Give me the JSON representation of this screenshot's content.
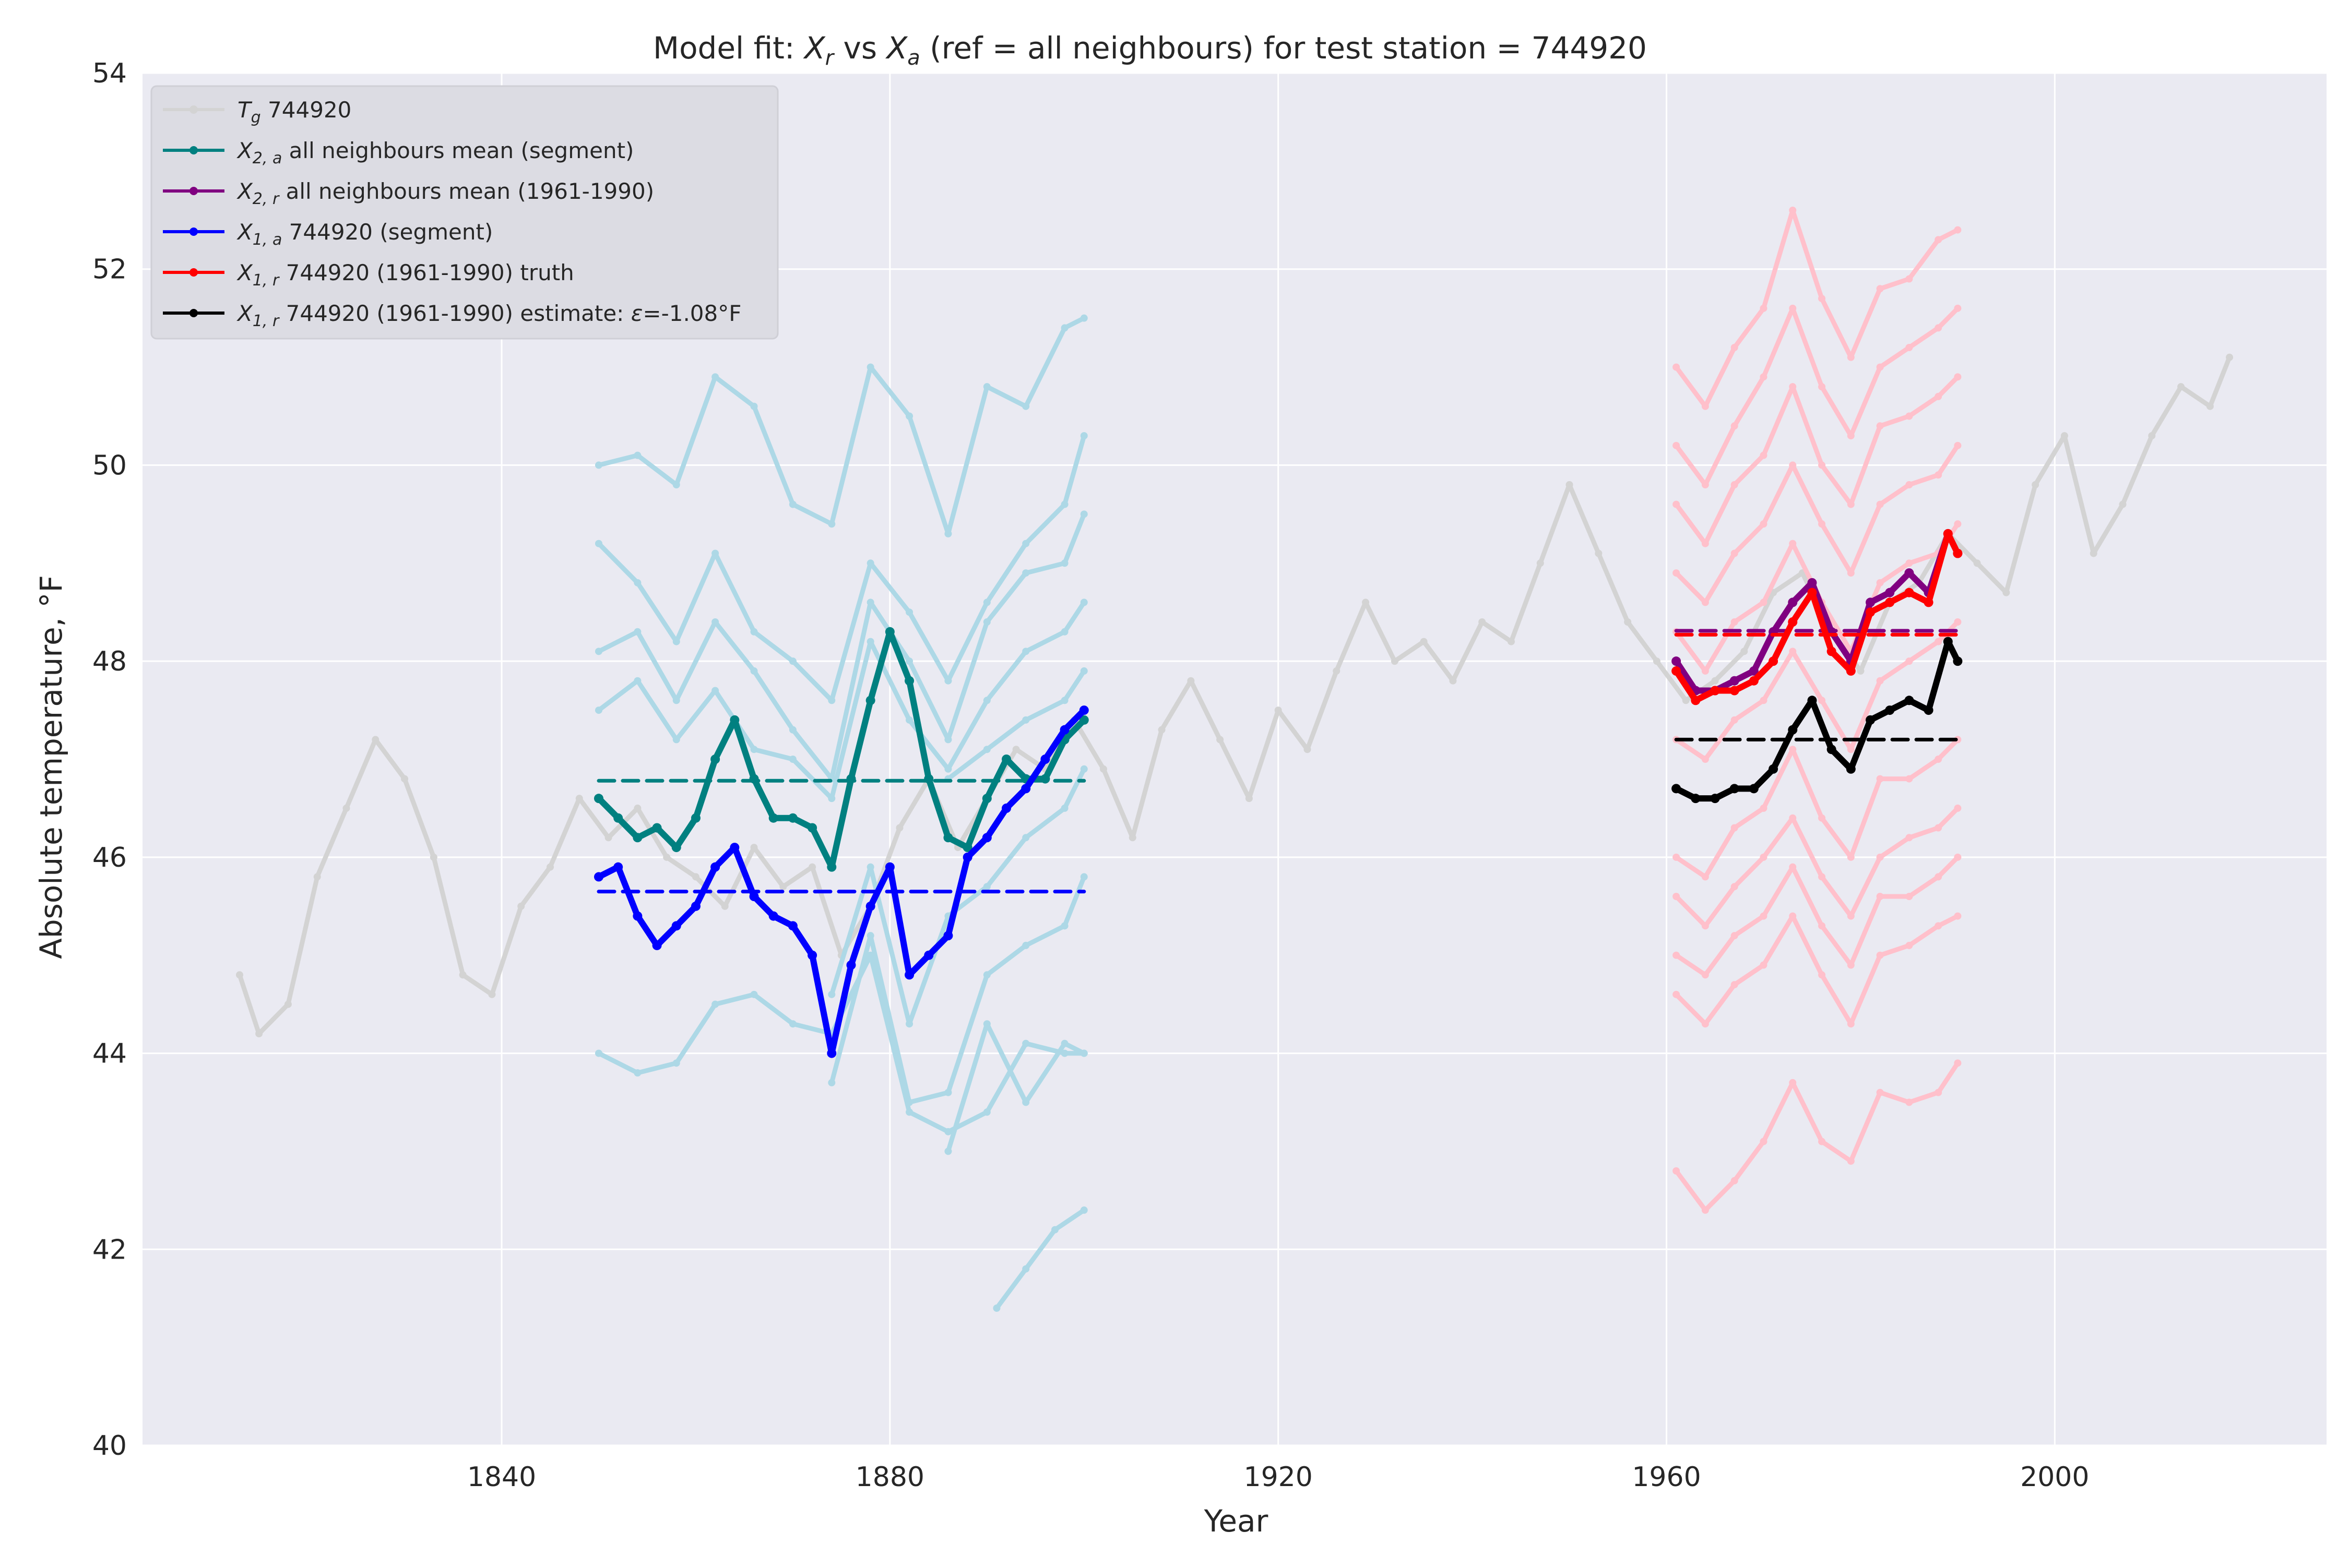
{
  "chart_data": {
    "type": "line",
    "title": {
      "prefix": "Model fit: ",
      "xr_main": "X",
      "xr_sub": "r",
      "vs": " vs ",
      "xa_main": "X",
      "xa_sub": "a",
      "suffix": " (ref = all neighbours) for test station = 744920"
    },
    "xlabel": "Year",
    "ylabel": "Absolute temperature, °F",
    "xlim": [
      1803,
      2028
    ],
    "ylim": [
      40,
      54
    ],
    "xticks": [
      1840,
      1880,
      1920,
      1960,
      2000
    ],
    "yticks": [
      40,
      42,
      44,
      46,
      48,
      50,
      52,
      54
    ],
    "grid": true,
    "legend_position": "top-left",
    "colors": {
      "background": "#eaeaf2",
      "grid": "#ffffff",
      "tg": "#d3d3d3",
      "neigh_seg": "#add8e6",
      "neigh_ref": "#ffc0cb",
      "x2a": "#008080",
      "x2r": "#800080",
      "x1a": "#0000ff",
      "x1r_truth": "#ff0000",
      "x1r_est": "#000000"
    },
    "legend": [
      {
        "key": "tg",
        "main": "T",
        "sub": "g",
        "text": " 744920"
      },
      {
        "key": "x2a",
        "main": "X",
        "sub": "2, a",
        "text": " all neighbours mean (segment)"
      },
      {
        "key": "x2r",
        "main": "X",
        "sub": "2, r",
        "text": " all neighbours mean (1961-1990)"
      },
      {
        "key": "x1a",
        "main": "X",
        "sub": "1, a",
        "text": " 744920 (segment)"
      },
      {
        "key": "x1r_truth",
        "main": "X",
        "sub": "1, r",
        "text": " 744920 (1961-1990) truth"
      },
      {
        "key": "x1r_est",
        "main": "X",
        "sub": "1, r",
        "text": " 744920 (1961-1990) estimate: ",
        "epsilon": "ε",
        "value": "=-1.08°F"
      }
    ],
    "series": [
      {
        "key": "tg",
        "name": "T_g 744920",
        "x": [
          1813,
          1815,
          1818,
          1821,
          1824,
          1827,
          1830,
          1833,
          1836,
          1839,
          1842,
          1845,
          1848,
          1851,
          1854,
          1857,
          1860,
          1863,
          1866,
          1869,
          1872,
          1875,
          1878,
          1881,
          1884,
          1887,
          1890,
          1893,
          1896,
          1899,
          1902,
          1905,
          1908,
          1911,
          1914,
          1917,
          1920,
          1923,
          1926,
          1929,
          1932,
          1935,
          1938,
          1941,
          1944,
          1947,
          1950,
          1953,
          1956,
          1959,
          1962,
          1965,
          1968,
          1971,
          1974,
          1977,
          1980,
          1983,
          1986,
          1989,
          1992,
          1995,
          1998,
          2001,
          2004,
          2007,
          2010,
          2013,
          2016,
          2018
        ],
        "y": [
          44.8,
          44.2,
          44.5,
          45.8,
          46.5,
          47.2,
          46.8,
          46.0,
          44.8,
          44.6,
          45.5,
          45.9,
          46.6,
          46.2,
          46.5,
          46.0,
          45.8,
          45.5,
          46.1,
          45.7,
          45.9,
          45.0,
          45.5,
          46.3,
          46.8,
          46.1,
          46.6,
          47.1,
          46.9,
          47.4,
          46.9,
          46.2,
          47.3,
          47.8,
          47.2,
          46.6,
          47.5,
          47.1,
          47.9,
          48.6,
          48.0,
          48.2,
          47.8,
          48.4,
          48.2,
          49.0,
          49.8,
          49.1,
          48.4,
          48.0,
          47.6,
          47.8,
          48.1,
          48.7,
          48.9,
          48.3,
          47.9,
          48.6,
          48.8,
          49.3,
          49.0,
          48.7,
          49.8,
          50.3,
          49.1,
          49.6,
          50.3,
          50.8,
          50.6,
          51.1
        ]
      },
      {
        "key": "neigh_seg",
        "name": "neighbour",
        "x": [
          1850,
          1854,
          1858,
          1862,
          1866,
          1870,
          1874,
          1878,
          1882,
          1886,
          1890,
          1894,
          1898,
          1900
        ],
        "y": [
          50.0,
          50.1,
          49.8,
          50.9,
          50.6,
          49.6,
          49.4,
          51.0,
          50.5,
          49.3,
          50.8,
          50.6,
          51.4,
          51.5
        ]
      },
      {
        "key": "neigh_seg",
        "name": "neighbour",
        "x": [
          1850,
          1854,
          1858,
          1862,
          1866,
          1870,
          1874,
          1878,
          1882,
          1886,
          1890,
          1894,
          1898,
          1900
        ],
        "y": [
          49.2,
          48.8,
          48.2,
          49.1,
          48.3,
          48.0,
          47.6,
          49.0,
          48.5,
          47.8,
          48.6,
          49.2,
          49.6,
          50.3
        ]
      },
      {
        "key": "neigh_seg",
        "name": "neighbour",
        "x": [
          1850,
          1854,
          1858,
          1862,
          1866,
          1870,
          1874,
          1878,
          1882,
          1886,
          1890,
          1894,
          1898,
          1900
        ],
        "y": [
          48.1,
          48.3,
          47.6,
          48.4,
          47.9,
          47.3,
          46.8,
          48.6,
          48.0,
          47.2,
          48.4,
          48.9,
          49.0,
          49.5
        ]
      },
      {
        "key": "neigh_seg",
        "name": "neighbour",
        "x": [
          1850,
          1854,
          1858,
          1862,
          1866,
          1870,
          1874,
          1878,
          1882,
          1886,
          1890,
          1894,
          1898,
          1900
        ],
        "y": [
          47.5,
          47.8,
          47.2,
          47.7,
          47.1,
          47.0,
          46.6,
          48.2,
          47.4,
          46.9,
          47.6,
          48.1,
          48.3,
          48.6
        ]
      },
      {
        "key": "neigh_seg",
        "name": "neighbour",
        "x": [
          1886,
          1890,
          1894,
          1898,
          1900
        ],
        "y": [
          46.8,
          47.1,
          47.4,
          47.6,
          47.9
        ]
      },
      {
        "key": "neigh_seg",
        "name": "neighbour",
        "x": [
          1874,
          1878,
          1882,
          1886,
          1890,
          1894,
          1898,
          1900
        ],
        "y": [
          44.6,
          45.9,
          44.3,
          45.4,
          45.7,
          46.2,
          46.5,
          46.9
        ]
      },
      {
        "key": "neigh_seg",
        "name": "neighbour",
        "x": [
          1874,
          1878,
          1882,
          1886,
          1890,
          1894,
          1898,
          1900
        ],
        "y": [
          43.7,
          45.2,
          43.5,
          43.6,
          44.8,
          45.1,
          45.3,
          45.8
        ]
      },
      {
        "key": "neigh_seg",
        "name": "neighbour",
        "x": [
          1886,
          1890,
          1894,
          1898,
          1900
        ],
        "y": [
          43.0,
          44.3,
          43.5,
          44.1,
          44.0
        ]
      },
      {
        "key": "neigh_seg",
        "name": "neighbour",
        "x": [
          1850,
          1854,
          1858,
          1862,
          1866,
          1870,
          1874,
          1878,
          1882,
          1886,
          1890,
          1894,
          1898,
          1900
        ],
        "y": [
          44.0,
          43.8,
          43.9,
          44.5,
          44.6,
          44.3,
          44.2,
          45.0,
          43.4,
          43.2,
          43.4,
          44.1,
          44.0,
          44.0
        ]
      },
      {
        "key": "neigh_seg",
        "name": "neighbour",
        "x": [
          1891,
          1894,
          1897,
          1900
        ],
        "y": [
          41.4,
          41.8,
          42.2,
          42.4
        ]
      },
      {
        "key": "neigh_ref",
        "name": "neighbour",
        "x": [
          1961,
          1964,
          1967,
          1970,
          1973,
          1976,
          1979,
          1982,
          1985,
          1988,
          1990
        ],
        "y": [
          51.0,
          50.6,
          51.2,
          51.6,
          52.6,
          51.7,
          51.1,
          51.8,
          51.9,
          52.3,
          52.4
        ]
      },
      {
        "key": "neigh_ref",
        "name": "neighbour",
        "x": [
          1961,
          1964,
          1967,
          1970,
          1973,
          1976,
          1979,
          1982,
          1985,
          1988,
          1990
        ],
        "y": [
          50.2,
          49.8,
          50.4,
          50.9,
          51.6,
          50.8,
          50.3,
          51.0,
          51.2,
          51.4,
          51.6
        ]
      },
      {
        "key": "neigh_ref",
        "name": "neighbour",
        "x": [
          1961,
          1964,
          1967,
          1970,
          1973,
          1976,
          1979,
          1982,
          1985,
          1988,
          1990
        ],
        "y": [
          49.6,
          49.2,
          49.8,
          50.1,
          50.8,
          50.0,
          49.6,
          50.4,
          50.5,
          50.7,
          50.9
        ]
      },
      {
        "key": "neigh_ref",
        "name": "neighbour",
        "x": [
          1961,
          1964,
          1967,
          1970,
          1973,
          1976,
          1979,
          1982,
          1985,
          1988,
          1990
        ],
        "y": [
          48.9,
          48.6,
          49.1,
          49.4,
          50.0,
          49.4,
          48.9,
          49.6,
          49.8,
          49.9,
          50.2
        ]
      },
      {
        "key": "neigh_ref",
        "name": "neighbour",
        "x": [
          1961,
          1964,
          1967,
          1970,
          1973,
          1976,
          1979,
          1982,
          1985,
          1988,
          1990
        ],
        "y": [
          48.3,
          47.9,
          48.4,
          48.6,
          49.2,
          48.6,
          48.1,
          48.8,
          49.0,
          49.1,
          49.4
        ]
      },
      {
        "key": "neigh_ref",
        "name": "neighbour",
        "x": [
          1961,
          1964,
          1967,
          1970,
          1973,
          1976,
          1979,
          1982,
          1985,
          1988,
          1990
        ],
        "y": [
          47.2,
          47.0,
          47.4,
          47.6,
          48.1,
          47.6,
          47.1,
          47.8,
          48.0,
          48.2,
          48.4
        ]
      },
      {
        "key": "neigh_ref",
        "name": "neighbour",
        "x": [
          1961,
          1964,
          1967,
          1970,
          1973,
          1976,
          1979,
          1982,
          1985,
          1988,
          1990
        ],
        "y": [
          46.0,
          45.8,
          46.3,
          46.5,
          47.1,
          46.4,
          46.0,
          46.8,
          46.8,
          47.0,
          47.2
        ]
      },
      {
        "key": "neigh_ref",
        "name": "neighbour",
        "x": [
          1961,
          1964,
          1967,
          1970,
          1973,
          1976,
          1979,
          1982,
          1985,
          1988,
          1990
        ],
        "y": [
          45.6,
          45.3,
          45.7,
          46.0,
          46.4,
          45.8,
          45.4,
          46.0,
          46.2,
          46.3,
          46.5
        ]
      },
      {
        "key": "neigh_ref",
        "name": "neighbour",
        "x": [
          1961,
          1964,
          1967,
          1970,
          1973,
          1976,
          1979,
          1982,
          1985,
          1988,
          1990
        ],
        "y": [
          45.0,
          44.8,
          45.2,
          45.4,
          45.9,
          45.3,
          44.9,
          45.6,
          45.6,
          45.8,
          46.0
        ]
      },
      {
        "key": "neigh_ref",
        "name": "neighbour",
        "x": [
          1961,
          1964,
          1967,
          1970,
          1973,
          1976,
          1979,
          1982,
          1985,
          1988,
          1990
        ],
        "y": [
          44.6,
          44.3,
          44.7,
          44.9,
          45.4,
          44.8,
          44.3,
          45.0,
          45.1,
          45.3,
          45.4
        ]
      },
      {
        "key": "neigh_ref",
        "name": "neighbour",
        "x": [
          1961,
          1964,
          1967,
          1970,
          1973,
          1976,
          1979,
          1982,
          1985,
          1988,
          1990
        ],
        "y": [
          42.8,
          42.4,
          42.7,
          43.1,
          43.7,
          43.1,
          42.9,
          43.6,
          43.5,
          43.6,
          43.9
        ]
      },
      {
        "key": "x2a",
        "name": "X_2,a all neighbours mean (segment)",
        "x": [
          1850,
          1852,
          1854,
          1856,
          1858,
          1860,
          1862,
          1864,
          1866,
          1868,
          1870,
          1872,
          1874,
          1876,
          1878,
          1880,
          1882,
          1884,
          1886,
          1888,
          1890,
          1892,
          1894,
          1896,
          1898,
          1900
        ],
        "y": [
          46.6,
          46.4,
          46.2,
          46.3,
          46.1,
          46.4,
          47.0,
          47.4,
          46.8,
          46.4,
          46.4,
          46.3,
          45.9,
          46.8,
          47.6,
          48.3,
          47.8,
          46.8,
          46.2,
          46.1,
          46.6,
          47.0,
          46.8,
          46.8,
          47.2,
          47.4
        ]
      },
      {
        "key": "x2a_mean",
        "name": "X_2,a segment mean",
        "dashed": true,
        "x": [
          1850,
          1900
        ],
        "y": [
          46.78,
          46.78
        ]
      },
      {
        "key": "x1a",
        "name": "X_1,a 744920 (segment)",
        "x": [
          1850,
          1852,
          1854,
          1856,
          1858,
          1860,
          1862,
          1864,
          1866,
          1868,
          1870,
          1872,
          1874,
          1876,
          1878,
          1880,
          1882,
          1884,
          1886,
          1888,
          1890,
          1892,
          1894,
          1896,
          1898,
          1900
        ],
        "y": [
          45.8,
          45.9,
          45.4,
          45.1,
          45.3,
          45.5,
          45.9,
          46.1,
          45.6,
          45.4,
          45.3,
          45.0,
          44.0,
          44.9,
          45.5,
          45.9,
          44.8,
          45.0,
          45.2,
          46.0,
          46.2,
          46.5,
          46.7,
          47.0,
          47.3,
          47.5
        ]
      },
      {
        "key": "x1a_mean",
        "name": "X_1,a segment mean",
        "dashed": true,
        "x": [
          1850,
          1900
        ],
        "y": [
          45.65,
          45.65
        ]
      },
      {
        "key": "x2r",
        "name": "X_2,r all neighbours mean (1961-1990)",
        "x": [
          1961,
          1963,
          1965,
          1967,
          1969,
          1971,
          1973,
          1975,
          1977,
          1979,
          1981,
          1983,
          1985,
          1987,
          1989,
          1990
        ],
        "y": [
          48.0,
          47.7,
          47.7,
          47.8,
          47.9,
          48.3,
          48.6,
          48.8,
          48.3,
          48.0,
          48.6,
          48.7,
          48.9,
          48.7,
          49.3,
          49.1
        ]
      },
      {
        "key": "x2r_mean",
        "name": "X_2,r mean",
        "dashed": true,
        "x": [
          1961,
          1990
        ],
        "y": [
          48.31,
          48.31
        ]
      },
      {
        "key": "x1r_truth",
        "name": "X_1,r 744920 (1961-1990) truth",
        "x": [
          1961,
          1963,
          1965,
          1967,
          1969,
          1971,
          1973,
          1975,
          1977,
          1979,
          1981,
          1983,
          1985,
          1987,
          1989,
          1990
        ],
        "y": [
          47.9,
          47.6,
          47.7,
          47.7,
          47.8,
          48.0,
          48.4,
          48.7,
          48.1,
          47.9,
          48.5,
          48.6,
          48.7,
          48.6,
          49.3,
          49.1
        ]
      },
      {
        "key": "x1r_truth_mean",
        "name": "X_1,r truth mean",
        "dashed": true,
        "x": [
          1961,
          1990
        ],
        "y": [
          48.27,
          48.27
        ]
      },
      {
        "key": "x1r_est",
        "name": "X_1,r 744920 (1961-1990) estimate",
        "x": [
          1961,
          1963,
          1965,
          1967,
          1969,
          1971,
          1973,
          1975,
          1977,
          1979,
          1981,
          1983,
          1985,
          1987,
          1989,
          1990
        ],
        "y": [
          46.7,
          46.6,
          46.6,
          46.7,
          46.7,
          46.9,
          47.3,
          47.6,
          47.1,
          46.9,
          47.4,
          47.5,
          47.6,
          47.5,
          48.2,
          48.0
        ]
      },
      {
        "key": "x1r_est_mean",
        "name": "X_1,r estimate mean",
        "dashed": true,
        "x": [
          1961,
          1990
        ],
        "y": [
          47.2,
          47.2
        ]
      }
    ]
  }
}
